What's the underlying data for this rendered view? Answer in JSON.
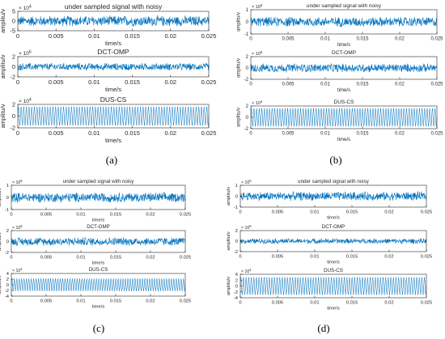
{
  "figure": {
    "line_color": "#0072BD",
    "axis_color": "#262626",
    "panels": [
      {
        "label": "(a)",
        "subplots": [
          {
            "type": "line",
            "title": "under sampled signal with noisy",
            "ylabel": "amplitu/v",
            "xlabel": "time/s",
            "exponent": "× 10^4",
            "x_range": [
              0,
              0.025
            ],
            "y_range": [
              -5,
              5
            ],
            "y_ticks": [
              -5,
              0,
              5
            ],
            "x_ticks": [
              0,
              0.005,
              0.01,
              0.015,
              0.02,
              0.025
            ],
            "x_tick_labels": [
              "0",
              "0.005",
              "0.01",
              "0.015",
              "0.02",
              "0.025"
            ],
            "signal": "noise",
            "amplitude": 3
          },
          {
            "type": "line",
            "title": "DCT-OMP",
            "ylabel": "amplitu/v",
            "xlabel": "time/s",
            "exponent": "× 10^6",
            "x_range": [
              0,
              0.025
            ],
            "y_range": [
              -2,
              2
            ],
            "y_ticks": [
              -2,
              0,
              2
            ],
            "x_ticks": [
              0,
              0.005,
              0.01,
              0.015,
              0.02,
              0.025
            ],
            "x_tick_labels": [
              "0",
              "0.005",
              "0.01",
              "0.015",
              "0.02",
              "0.025"
            ],
            "signal": "noise",
            "amplitude": 0.8
          },
          {
            "type": "line",
            "title": "DUS-CS",
            "ylabel": "amplitu/v",
            "xlabel": "time/s",
            "exponent": "× 10^4",
            "x_range": [
              0,
              0.025
            ],
            "y_range": [
              -2,
              2
            ],
            "y_ticks": [
              -2,
              0,
              2
            ],
            "x_ticks": [
              0,
              0.005,
              0.01,
              0.015,
              0.02,
              0.025
            ],
            "x_tick_labels": [
              "0",
              "0.005",
              "0.01",
              "0.015",
              "0.02",
              "0.025"
            ],
            "signal": "sine",
            "amplitude": 1.6
          }
        ]
      },
      {
        "label": "(b)",
        "subplots": [
          {
            "type": "line",
            "title": "under sampled signal with noisy",
            "ylabel": "amplitu/v",
            "xlabel": "time/s",
            "exponent": "× 10^5",
            "x_range": [
              0,
              0.025
            ],
            "y_range": [
              -1,
              1
            ],
            "y_ticks": [
              -1,
              0,
              1
            ],
            "x_ticks": [
              0,
              0.005,
              0.01,
              0.015,
              0.02,
              0.025
            ],
            "x_tick_labels": [
              "0",
              "0.005",
              "0.01",
              "0.015",
              "0.02",
              "0.025"
            ],
            "signal": "noise",
            "amplitude": 0.45
          },
          {
            "type": "line",
            "title": "DCT-OMP",
            "ylabel": "amplitu/v",
            "xlabel": "time/s",
            "exponent": "× 10^6",
            "x_range": [
              0,
              0.025
            ],
            "y_range": [
              -2,
              2
            ],
            "y_ticks": [
              -2,
              0,
              2
            ],
            "x_ticks": [
              0,
              0.005,
              0.01,
              0.015,
              0.02,
              0.025
            ],
            "x_tick_labels": [
              "0",
              "0.005",
              "0.01",
              "0.015",
              "0.02",
              "0.025"
            ],
            "signal": "noise",
            "amplitude": 0.85
          },
          {
            "type": "line",
            "title": "DUS-CS",
            "ylabel": "amplitu/v",
            "xlabel": "time/s",
            "exponent": "× 10^4",
            "x_range": [
              0,
              0.025
            ],
            "y_range": [
              -2,
              2
            ],
            "y_ticks": [
              -2,
              0,
              2
            ],
            "x_ticks": [
              0,
              0.005,
              0.01,
              0.015,
              0.02,
              0.025
            ],
            "x_tick_labels": [
              "0",
              "0.005",
              "0.01",
              "0.015",
              "0.02",
              "0.025"
            ],
            "signal": "sine",
            "amplitude": 1.6
          }
        ]
      },
      {
        "label": "(c)",
        "subplots": [
          {
            "type": "line",
            "title": "under sampled signal with noisy",
            "ylabel": "amplitu/v",
            "xlabel": "time/s",
            "exponent": "× 10^5",
            "x_range": [
              0,
              0.025
            ],
            "y_range": [
              -1,
              1
            ],
            "y_ticks": [
              -1,
              0,
              1
            ],
            "x_ticks": [
              0,
              0.005,
              0.01,
              0.015,
              0.02,
              0.025
            ],
            "x_tick_labels": [
              "0",
              "0.005",
              "0.01",
              "0.015",
              "0.02",
              "0.025"
            ],
            "signal": "noise",
            "amplitude": 0.45
          },
          {
            "type": "line",
            "title": "DCT-OMP",
            "ylabel": "amplitu/v",
            "xlabel": "time/s",
            "exponent": "× 10^6",
            "x_range": [
              0,
              0.025
            ],
            "y_range": [
              -2,
              2
            ],
            "y_ticks": [
              -2,
              0,
              2
            ],
            "x_ticks": [
              0,
              0.005,
              0.01,
              0.015,
              0.02,
              0.025
            ],
            "x_tick_labels": [
              "0",
              "0.005",
              "0.01",
              "0.015",
              "0.02",
              "0.025"
            ],
            "signal": "noise",
            "amplitude": 0.85
          },
          {
            "type": "line",
            "title": "DUS-CS",
            "ylabel": "amplitu/v",
            "xlabel": "time/s",
            "exponent": "× 10^4",
            "x_range": [
              0,
              0.025
            ],
            "y_range": [
              -4,
              4
            ],
            "y_ticks": [
              -4,
              -2,
              0,
              2,
              4
            ],
            "x_ticks": [
              0,
              0.005,
              0.01,
              0.015,
              0.02,
              0.025
            ],
            "x_tick_labels": [
              "0",
              "0.005",
              "0.01",
              "0.015",
              "0.02",
              "0.025"
            ],
            "signal": "sine",
            "amplitude": 2.2
          }
        ]
      },
      {
        "label": "(d)",
        "subplots": [
          {
            "type": "line",
            "title": "under sampled signal with noisy",
            "ylabel": "amplitu/v",
            "xlabel": "time/s",
            "exponent": "× 10^5",
            "x_range": [
              0,
              0.025
            ],
            "y_range": [
              -1,
              1
            ],
            "y_ticks": [
              -1,
              0,
              1
            ],
            "x_ticks": [
              0,
              0.005,
              0.01,
              0.015,
              0.02,
              0.025
            ],
            "x_tick_labels": [
              "0",
              "0.005",
              "0.01",
              "0.015",
              "0.02",
              "0.025"
            ],
            "signal": "noise",
            "amplitude": 0.45
          },
          {
            "type": "line",
            "title": "DCT-OMP",
            "ylabel": "amplitu/v",
            "xlabel": "time/s",
            "exponent": "× 10^6",
            "x_range": [
              0,
              0.025
            ],
            "y_range": [
              -2,
              2
            ],
            "y_ticks": [
              -2,
              0,
              2
            ],
            "x_ticks": [
              0,
              0.005,
              0.01,
              0.015,
              0.02,
              0.025
            ],
            "x_tick_labels": [
              "0",
              "0.005",
              "0.01",
              "0.015",
              "0.02",
              "0.025"
            ],
            "signal": "noise",
            "amplitude": 0.55
          },
          {
            "type": "line",
            "title": "DUS-CS",
            "ylabel": "amplitu/v",
            "xlabel": "time/s",
            "exponent": "× 10^4",
            "x_range": [
              0,
              0.025
            ],
            "y_range": [
              -4,
              4
            ],
            "y_ticks": [
              -4,
              -2,
              0,
              2,
              4
            ],
            "x_ticks": [
              0,
              0.005,
              0.01,
              0.015,
              0.02,
              0.025
            ],
            "x_tick_labels": [
              "0",
              "0.005",
              "0.01",
              "0.015",
              "0.02",
              "0.025"
            ],
            "signal": "sine",
            "amplitude": 3.0
          }
        ]
      }
    ]
  },
  "chart_data": [
    {
      "type": "line",
      "panel": "(a)",
      "title": "under sampled signal with noisy",
      "xlabel": "time/s",
      "ylabel": "amplitu/v",
      "xlim": [
        0,
        0.025
      ],
      "ylim": [
        -50000,
        50000
      ],
      "y_scale": "× 10^4",
      "series": [
        {
          "description_note": "",
          "approx_amplitude": 30000
        }
      ]
    },
    {
      "type": "line",
      "panel": "(a)",
      "title": "DCT-OMP",
      "xlabel": "time/s",
      "ylabel": "amplitu/v",
      "xlim": [
        0,
        0.025
      ],
      "ylim": [
        -2000000,
        2000000
      ],
      "y_scale": "× 10^6",
      "series": [
        {
          "approx_amplitude": 800000
        }
      ]
    },
    {
      "type": "line",
      "panel": "(a)",
      "title": "DUS-CS",
      "xlabel": "time/s",
      "ylabel": "amplitu/v",
      "xlim": [
        0,
        0.025
      ],
      "ylim": [
        -20000,
        20000
      ],
      "y_scale": "× 10^4",
      "series": [
        {
          "approx_amplitude": 16000
        }
      ]
    },
    {
      "type": "line",
      "panel": "(b)",
      "title": "under sampled signal with noisy",
      "xlabel": "time/s",
      "ylabel": "amplitu/v",
      "xlim": [
        0,
        0.025
      ],
      "ylim": [
        -100000,
        100000
      ],
      "y_scale": "× 10^5",
      "series": [
        {
          "approx_amplitude": 45000
        }
      ]
    },
    {
      "type": "line",
      "panel": "(b)",
      "title": "DCT-OMP",
      "xlabel": "time/s",
      "ylabel": "amplitu/v",
      "xlim": [
        0,
        0.025
      ],
      "ylim": [
        -2000000,
        2000000
      ],
      "y_scale": "× 10^6",
      "series": [
        {
          "approx_amplitude": 850000
        }
      ]
    },
    {
      "type": "line",
      "panel": "(b)",
      "title": "DUS-CS",
      "xlabel": "time/s",
      "ylabel": "amplitu/v",
      "xlim": [
        0,
        0.025
      ],
      "ylim": [
        -20000,
        20000
      ],
      "y_scale": "× 10^4",
      "series": [
        {
          "approx_amplitude": 16000
        }
      ]
    },
    {
      "type": "line",
      "panel": "(c)",
      "title": "under sampled signal with noisy",
      "xlabel": "time/s",
      "ylabel": "amplitu/v",
      "xlim": [
        0,
        0.025
      ],
      "ylim": [
        -100000,
        100000
      ],
      "y_scale": "× 10^5",
      "series": [
        {
          "approx_amplitude": 45000
        }
      ]
    },
    {
      "type": "line",
      "panel": "(c)",
      "title": "DCT-OMP",
      "xlabel": "time/s",
      "ylabel": "amplitu/v",
      "xlim": [
        0,
        0.025
      ],
      "ylim": [
        -2000000,
        2000000
      ],
      "y_scale": "× 10^6",
      "series": [
        {
          "approx_amplitude": 850000
        }
      ]
    },
    {
      "type": "line",
      "panel": "(c)",
      "title": "DUS-CS",
      "xlabel": "time/s",
      "ylabel": "amplitu/v",
      "xlim": [
        0,
        0.025
      ],
      "ylim": [
        -40000,
        40000
      ],
      "y_scale": "× 10^4",
      "series": [
        {
          "approx_amplitude": 22000
        }
      ]
    },
    {
      "type": "line",
      "panel": "(d)",
      "title": "under sampled signal with noisy",
      "xlabel": "time/s",
      "ylabel": "amplitu/v",
      "xlim": [
        0,
        0.025
      ],
      "ylim": [
        -100000,
        100000
      ],
      "y_scale": "× 10^5",
      "series": [
        {
          "approx_amplitude": 45000
        }
      ]
    },
    {
      "type": "line",
      "panel": "(d)",
      "title": "DCT-OMP",
      "xlabel": "time/s",
      "ylabel": "amplitu/v",
      "xlim": [
        0,
        0.025
      ],
      "ylim": [
        -2000000,
        2000000
      ],
      "y_scale": "× 10^6",
      "series": [
        {
          "approx_amplitude": 550000
        }
      ]
    },
    {
      "type": "line",
      "panel": "(d)",
      "title": "DUS-CS",
      "xlabel": "time/s",
      "ylabel": "amplitu/v",
      "xlim": [
        0,
        0.025
      ],
      "ylim": [
        -40000,
        40000
      ],
      "y_scale": "× 10^4",
      "series": [
        {
          "approx_amplitude": 30000
        }
      ]
    }
  ]
}
